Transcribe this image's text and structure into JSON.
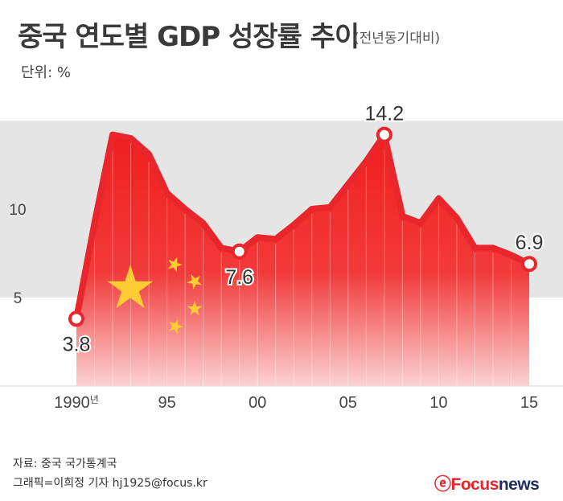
{
  "header": {
    "title": "중국 연도별 GDP 성장률 추이",
    "subtitle": "(전년동기대비)",
    "unit": "단위: %"
  },
  "footer": {
    "source": "자료: 중국 국가통계국",
    "credit": "그래픽=이희정 기자 hj1925@focus.kr",
    "logo_mark": "ⓔ",
    "logo_focus": "Focus",
    "logo_news": "news"
  },
  "colors": {
    "line": "#e8262b",
    "band": "#e5e5e5",
    "fill_top": "#f01e1e",
    "fill_bottom": "#fbd2d2",
    "star": "#ffcc33",
    "tick": "#444444"
  },
  "chart_data": {
    "type": "area",
    "title": "중국 연도별 GDP 성장률 추이",
    "subtitle": "(전년동기대비)",
    "ylabel": "단위: %",
    "xlim": [
      1990,
      2015
    ],
    "ylim": [
      0,
      15
    ],
    "bands": [
      [
        5,
        10
      ],
      [
        10,
        15
      ]
    ],
    "x": [
      1990,
      1991,
      1992,
      1993,
      1994,
      1995,
      1996,
      1997,
      1998,
      1999,
      2000,
      2001,
      2002,
      2003,
      2004,
      2005,
      2006,
      2007,
      2008,
      2009,
      2010,
      2011,
      2012,
      2013,
      2014,
      2015
    ],
    "values": [
      3.8,
      9.2,
      14.2,
      14.0,
      13.1,
      10.9,
      10.0,
      9.2,
      7.8,
      7.6,
      8.4,
      8.3,
      9.1,
      10.0,
      10.1,
      11.4,
      12.7,
      14.2,
      9.6,
      9.2,
      10.6,
      9.5,
      7.8,
      7.8,
      7.4,
      6.9
    ],
    "x_ticks": [
      {
        "x": 1990,
        "label": "1990",
        "suffix": "년"
      },
      {
        "x": 1995,
        "label": "95",
        "suffix": ""
      },
      {
        "x": 2000,
        "label": "00",
        "suffix": ""
      },
      {
        "x": 2005,
        "label": "05",
        "suffix": ""
      },
      {
        "x": 2010,
        "label": "10",
        "suffix": ""
      },
      {
        "x": 2015,
        "label": "15",
        "suffix": ""
      }
    ],
    "y_ticks": [
      {
        "y": 5,
        "label": "5"
      },
      {
        "y": 10,
        "label": "10"
      }
    ],
    "annotations": [
      {
        "x": 1990,
        "y": 3.8,
        "label": "3.8",
        "position": "below"
      },
      {
        "x": 1999,
        "y": 7.6,
        "label": "7.6",
        "position": "below"
      },
      {
        "x": 2007,
        "y": 14.2,
        "label": "14.2",
        "position": "above"
      },
      {
        "x": 2015,
        "y": 6.9,
        "label": "6.9",
        "position": "above"
      }
    ]
  }
}
